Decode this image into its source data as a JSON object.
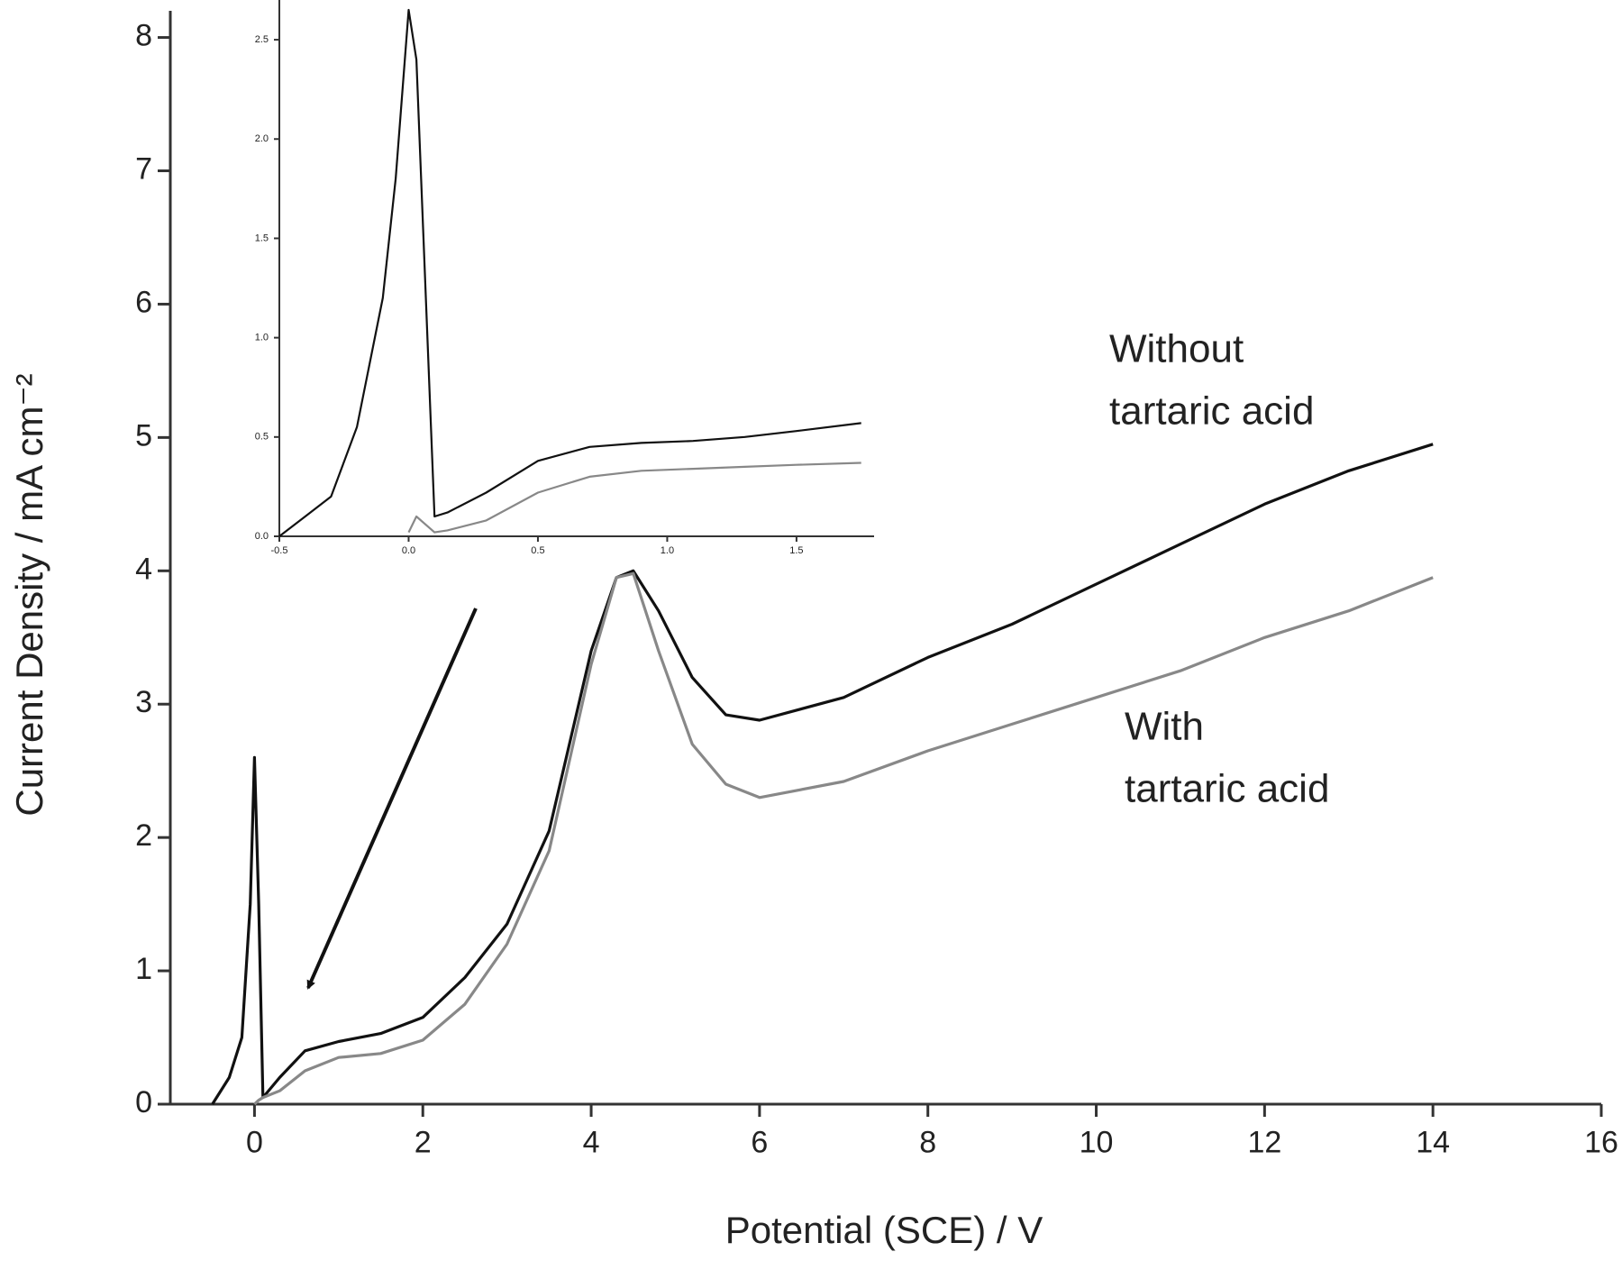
{
  "chart_data": [
    {
      "type": "line",
      "x_label": "Potential (SCE) / V",
      "y_label": "Current Density / mA cm⁻²",
      "x": [
        -0.5,
        -0.3,
        -0.15,
        -0.05,
        0,
        0.05,
        0.1,
        0.3,
        0.6,
        1,
        1.5,
        2,
        2.5,
        3,
        3.5,
        4,
        4.3,
        4.5,
        4.8,
        5.2,
        5.6,
        6,
        7,
        8,
        9,
        10,
        11,
        12,
        13,
        14
      ],
      "series": [
        {
          "name": "Without tartaric acid",
          "color": "#111111",
          "values": [
            0,
            0.2,
            0.5,
            1.5,
            2.6,
            1.5,
            0.05,
            0.2,
            0.4,
            0.47,
            0.53,
            0.65,
            0.95,
            1.35,
            2.05,
            3.4,
            3.95,
            4.0,
            3.7,
            3.2,
            2.92,
            2.88,
            3.05,
            3.35,
            3.6,
            3.9,
            4.2,
            4.5,
            4.75,
            4.95
          ]
        },
        {
          "name": "With tartaric acid",
          "color": "#888888",
          "values": [
            null,
            null,
            null,
            null,
            0,
            0.03,
            0.05,
            0.1,
            0.25,
            0.35,
            0.38,
            0.48,
            0.75,
            1.2,
            1.9,
            3.3,
            3.95,
            3.98,
            3.4,
            2.7,
            2.4,
            2.3,
            2.42,
            2.65,
            2.85,
            3.05,
            3.25,
            3.5,
            3.7,
            3.95
          ]
        }
      ],
      "annotations": [
        [
          "Without",
          "tartaric acid"
        ],
        [
          "With",
          "tartaric acid"
        ]
      ],
      "xlim": [
        -1,
        16
      ],
      "xticks": [
        0,
        2,
        4,
        6,
        8,
        10,
        12,
        14,
        16
      ],
      "ylim": [
        0,
        8.2
      ],
      "yticks": [
        0,
        1,
        2,
        3,
        4,
        5,
        6,
        7,
        8
      ]
    },
    {
      "type": "line",
      "x": [
        -0.5,
        -0.4,
        -0.3,
        -0.2,
        -0.1,
        -0.05,
        0.0,
        0.03,
        0.1,
        0.15,
        0.3,
        0.5,
        0.7,
        0.9,
        1.1,
        1.3,
        1.5,
        1.75
      ],
      "series": [
        {
          "color": "#111111",
          "values": [
            0,
            0.1,
            0.2,
            0.55,
            1.2,
            1.8,
            2.65,
            2.4,
            0.1,
            0.12,
            0.22,
            0.38,
            0.45,
            0.47,
            0.48,
            0.5,
            0.53,
            0.57
          ]
        },
        {
          "color": "#888888",
          "values": [
            null,
            null,
            null,
            null,
            null,
            null,
            0.02,
            0.1,
            0.02,
            0.03,
            0.08,
            0.22,
            0.3,
            0.33,
            0.34,
            0.35,
            0.36,
            0.37
          ]
        }
      ],
      "xlim": [
        -0.5,
        1.8
      ],
      "xticks": [
        -0.5,
        {
          "value": 0,
          "label": "0.0"
        },
        0.5,
        {
          "value": 1,
          "label": "1.0"
        },
        1.5
      ],
      "ylim": [
        0,
        2.7
      ],
      "yticks": [
        {
          "value": 0,
          "label": "0.0"
        },
        0.5,
        {
          "value": 1,
          "label": "1.0"
        },
        1.5,
        {
          "value": 2,
          "label": "2.0"
        },
        2.5
      ]
    }
  ]
}
